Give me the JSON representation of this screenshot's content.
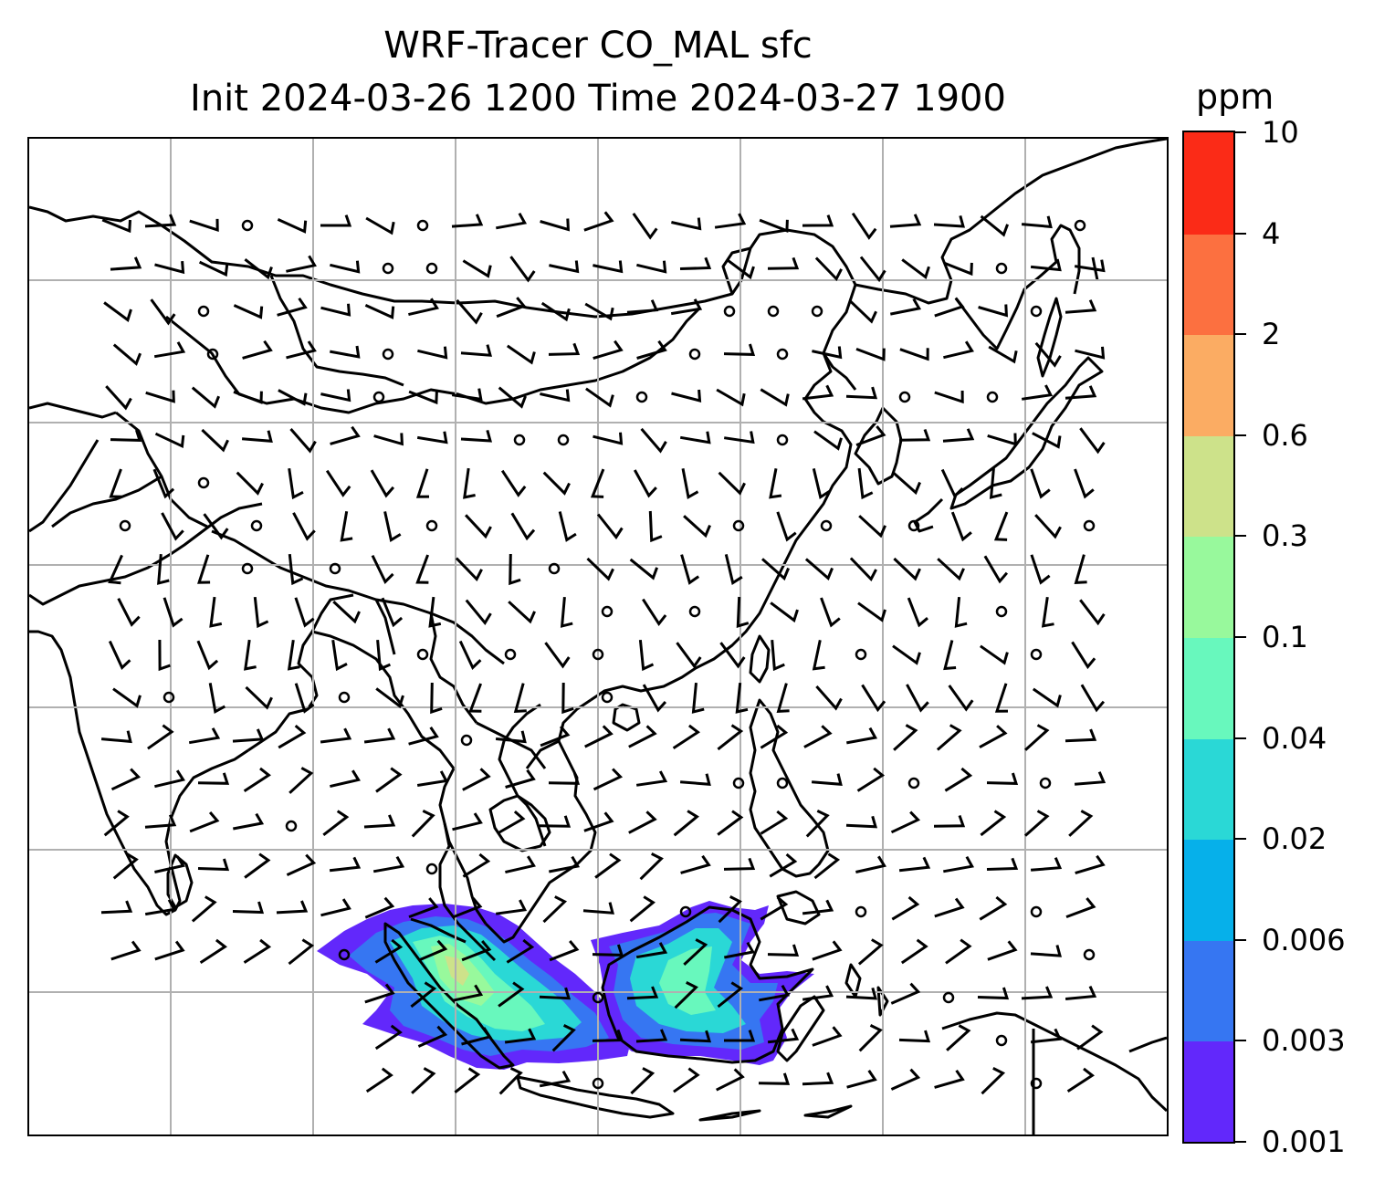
{
  "title": {
    "line1": "WRF-Tracer CO_MAL sfc",
    "line2": "Init 2024-03-26 1200 Time 2024-03-27 1900"
  },
  "colorbar": {
    "units": "ppm",
    "ticks": [
      "0.001",
      "0.003",
      "0.006",
      "0.02",
      "0.04",
      "0.1",
      "0.3",
      "0.6",
      "2",
      "4",
      "10"
    ],
    "colors": [
      "#6228fb",
      "#3676f2",
      "#06b0ea",
      "#2ad8d6",
      "#68f8bd",
      "#98f99c",
      "#cde28a",
      "#fbac63",
      "#fc7040",
      "#fb2b17"
    ]
  },
  "map": {
    "field": "CO_MAL surface tracer concentration",
    "overlay": "wind barbs",
    "gridlines": true,
    "tracer_region": "Malaysia / Borneo / Sumatra"
  },
  "chart_data": {
    "type": "heatmap",
    "title": "WRF-Tracer CO_MAL sfc",
    "subtitle": "Init 2024-03-26 1200 Time 2024-03-27 1900",
    "units": "ppm",
    "levels": [
      0.001,
      0.003,
      0.006,
      0.02,
      0.04,
      0.1,
      0.3,
      0.6,
      2,
      4,
      10
    ],
    "grid": true
  }
}
